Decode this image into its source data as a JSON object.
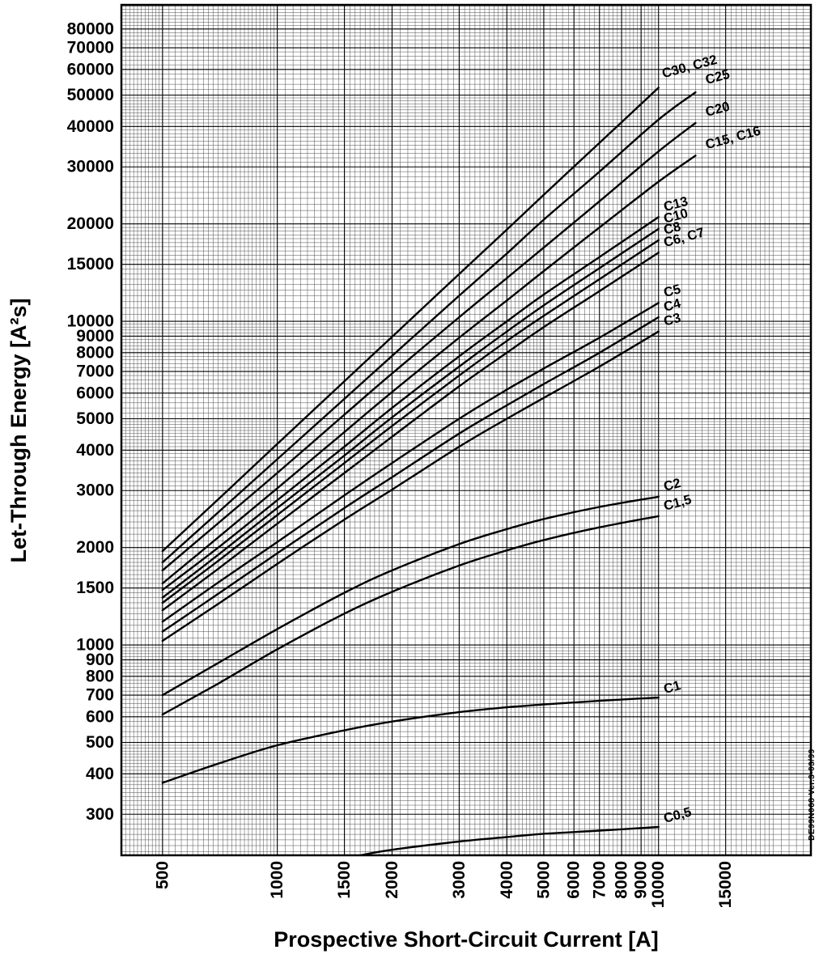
{
  "watermark": "DE99N068 Ver.3-03/99",
  "chart_data": {
    "type": "line",
    "title": "",
    "xlabel": "Prospective Short-Circuit Current [A]",
    "ylabel": "Let-Through Energy [A²s]",
    "x_scale": "log",
    "y_scale": "log",
    "x_domain": [
      390,
      25100
    ],
    "y_domain": [
      224,
      95000
    ],
    "x_ticks": [
      500,
      1000,
      1500,
      2000,
      3000,
      4000,
      5000,
      6000,
      7000,
      8000,
      9000,
      10000,
      15000
    ],
    "y_ticks": [
      300,
      400,
      500,
      600,
      700,
      800,
      900,
      1000,
      1500,
      2000,
      3000,
      4000,
      5000,
      6000,
      7000,
      8000,
      9000,
      10000,
      15000,
      20000,
      30000,
      40000,
      50000,
      60000,
      70000,
      80000
    ],
    "grid": true,
    "legend_position": "curve-end-labels",
    "stroke_color": "#000000",
    "background_color": "#ffffff",
    "series": [
      {
        "label": "C30, C32",
        "label_offset": [
          6,
          -12
        ],
        "points": [
          [
            500,
            1950
          ],
          [
            700,
            2820
          ],
          [
            1000,
            4180
          ],
          [
            1500,
            6530
          ],
          [
            2000,
            8960
          ],
          [
            3000,
            14000
          ],
          [
            4000,
            19200
          ],
          [
            5000,
            24600
          ],
          [
            7000,
            35600
          ],
          [
            10000,
            52700
          ]
        ]
      },
      {
        "label": "C25",
        "label_offset": [
          14,
          -10
        ],
        "points": [
          [
            500,
            1800
          ],
          [
            700,
            2570
          ],
          [
            1000,
            3750
          ],
          [
            1500,
            5760
          ],
          [
            2000,
            7820
          ],
          [
            3000,
            12000
          ],
          [
            4000,
            16200
          ],
          [
            5000,
            20600
          ],
          [
            7000,
            29000
          ],
          [
            10000,
            42000
          ],
          [
            12500,
            51000
          ]
        ]
      },
      {
        "label": "C20",
        "label_offset": [
          14,
          -8
        ],
        "points": [
          [
            500,
            1700
          ],
          [
            700,
            2380
          ],
          [
            1000,
            3400
          ],
          [
            1500,
            5150
          ],
          [
            2000,
            6900
          ],
          [
            3000,
            10300
          ],
          [
            4000,
            13600
          ],
          [
            5000,
            16900
          ],
          [
            7000,
            23500
          ],
          [
            10000,
            33500
          ],
          [
            12500,
            41000
          ]
        ]
      },
      {
        "label": "C15, C16",
        "label_offset": [
          14,
          -8
        ],
        "points": [
          [
            500,
            1550
          ],
          [
            700,
            2150
          ],
          [
            1000,
            3050
          ],
          [
            1500,
            4550
          ],
          [
            2000,
            6050
          ],
          [
            3000,
            8900
          ],
          [
            4000,
            11600
          ],
          [
            5000,
            14300
          ],
          [
            7000,
            19500
          ],
          [
            10000,
            27000
          ],
          [
            12500,
            32500
          ]
        ]
      },
      {
        "label": "C13",
        "points": [
          [
            500,
            1480
          ],
          [
            700,
            2000
          ],
          [
            1000,
            2800
          ],
          [
            1500,
            4100
          ],
          [
            2000,
            5400
          ],
          [
            3000,
            7800
          ],
          [
            4000,
            10000
          ],
          [
            5000,
            12100
          ],
          [
            7000,
            15800
          ],
          [
            10000,
            21000
          ]
        ]
      },
      {
        "label": "C10",
        "points": [
          [
            500,
            1400
          ],
          [
            700,
            1900
          ],
          [
            1000,
            2650
          ],
          [
            1500,
            3850
          ],
          [
            2000,
            5050
          ],
          [
            3000,
            7250
          ],
          [
            4000,
            9300
          ],
          [
            5000,
            11200
          ],
          [
            7000,
            14600
          ],
          [
            10000,
            19300
          ]
        ]
      },
      {
        "label": "C8",
        "points": [
          [
            500,
            1350
          ],
          [
            700,
            1820
          ],
          [
            1000,
            2520
          ],
          [
            1500,
            3650
          ],
          [
            2000,
            4750
          ],
          [
            3000,
            6800
          ],
          [
            4000,
            8700
          ],
          [
            5000,
            10400
          ],
          [
            7000,
            13500
          ],
          [
            10000,
            17800
          ]
        ]
      },
      {
        "label": "C6, C7",
        "points": [
          [
            500,
            1280
          ],
          [
            700,
            1720
          ],
          [
            1000,
            2370
          ],
          [
            1500,
            3400
          ],
          [
            2000,
            4400
          ],
          [
            3000,
            6300
          ],
          [
            4000,
            8000
          ],
          [
            5000,
            9600
          ],
          [
            7000,
            12400
          ],
          [
            10000,
            16300
          ]
        ]
      },
      {
        "label": "C5",
        "points": [
          [
            500,
            1180
          ],
          [
            700,
            1560
          ],
          [
            1000,
            2080
          ],
          [
            1500,
            2900
          ],
          [
            2000,
            3650
          ],
          [
            3000,
            5000
          ],
          [
            4000,
            6150
          ],
          [
            5000,
            7150
          ],
          [
            7000,
            8900
          ],
          [
            10000,
            11400
          ]
        ]
      },
      {
        "label": "C4",
        "points": [
          [
            500,
            1100
          ],
          [
            700,
            1440
          ],
          [
            1000,
            1920
          ],
          [
            1500,
            2650
          ],
          [
            2000,
            3300
          ],
          [
            3000,
            4500
          ],
          [
            4000,
            5500
          ],
          [
            5000,
            6400
          ],
          [
            7000,
            8000
          ],
          [
            10000,
            10300
          ]
        ]
      },
      {
        "label": "C3",
        "points": [
          [
            500,
            1030
          ],
          [
            700,
            1340
          ],
          [
            1000,
            1780
          ],
          [
            1500,
            2440
          ],
          [
            2000,
            3020
          ],
          [
            3000,
            4100
          ],
          [
            4000,
            5000
          ],
          [
            5000,
            5800
          ],
          [
            7000,
            7250
          ],
          [
            10000,
            9300
          ]
        ]
      },
      {
        "label": "C2",
        "points": [
          [
            500,
            700
          ],
          [
            700,
            880
          ],
          [
            1000,
            1120
          ],
          [
            1500,
            1450
          ],
          [
            2000,
            1700
          ],
          [
            3000,
            2050
          ],
          [
            4000,
            2280
          ],
          [
            5000,
            2450
          ],
          [
            7000,
            2670
          ],
          [
            10000,
            2870
          ]
        ]
      },
      {
        "label": "C1,5",
        "points": [
          [
            500,
            610
          ],
          [
            700,
            760
          ],
          [
            1000,
            970
          ],
          [
            1500,
            1250
          ],
          [
            2000,
            1460
          ],
          [
            3000,
            1760
          ],
          [
            4000,
            1960
          ],
          [
            5000,
            2110
          ],
          [
            7000,
            2310
          ],
          [
            10000,
            2500
          ]
        ]
      },
      {
        "label": "C1",
        "label_offset": [
          8,
          -5
        ],
        "points": [
          [
            500,
            375
          ],
          [
            700,
            430
          ],
          [
            1000,
            490
          ],
          [
            1500,
            545
          ],
          [
            2000,
            580
          ],
          [
            3000,
            620
          ],
          [
            4000,
            642
          ],
          [
            5000,
            655
          ],
          [
            7000,
            672
          ],
          [
            10000,
            688
          ]
        ]
      },
      {
        "label": "C0,5",
        "label_offset": [
          8,
          -5
        ],
        "points": [
          [
            1650,
            224
          ],
          [
            2000,
            233
          ],
          [
            3000,
            247
          ],
          [
            4000,
            255
          ],
          [
            5000,
            261
          ],
          [
            7000,
            267
          ],
          [
            10000,
            274
          ]
        ]
      }
    ]
  }
}
